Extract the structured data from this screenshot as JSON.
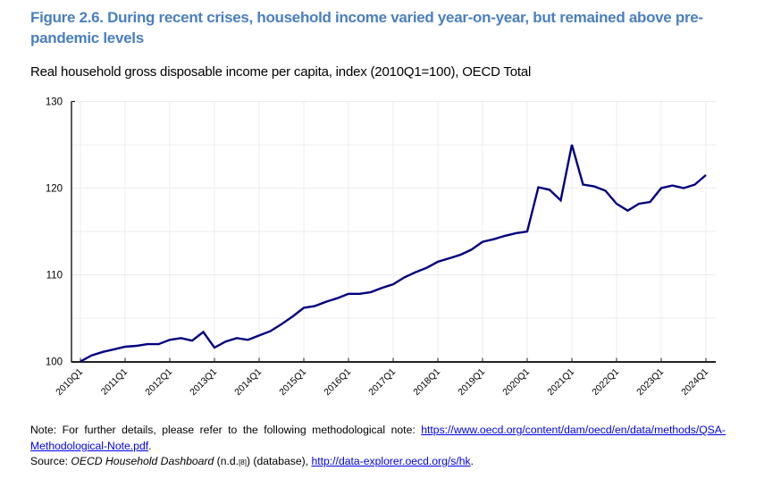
{
  "figure": {
    "title": "Figure 2.6. During recent crises, household income varied year-on-year, but remained above pre-pandemic levels",
    "subtitle": "Real household gross disposable income per capita, index (2010Q1=100), OECD Total"
  },
  "notes": {
    "note_prefix": "Note: For further details, please refer to the following methodological note: ",
    "note_link": "https://www.oecd.org/content/dam/oecd/en/data/methods/QSA-Methodological-Note.pdf",
    "note_suffix": ".",
    "source_prefix": "Source: ",
    "source_title": "OECD Household Dashboard",
    "source_mid": " (n.d.",
    "source_ref": "[8]",
    "source_after_ref": ") (database), ",
    "source_link": "http://data-explorer.oecd.org/s/hk",
    "source_suffix": "."
  },
  "colors": {
    "title": "#4a7fc1",
    "line": "#000080",
    "grid": "#ececec",
    "axis": "#222222"
  },
  "chart_data": {
    "type": "line",
    "title": "Real household gross disposable income per capita, index (2010Q1=100), OECD Total",
    "xlabel": "",
    "ylabel": "",
    "ylim": [
      100,
      130
    ],
    "yticks": [
      100,
      110,
      120,
      130
    ],
    "grid": true,
    "legend": "none",
    "x_tick_labels": [
      "2010Q1",
      "2011Q1",
      "2012Q1",
      "2013Q1",
      "2014Q1",
      "2015Q1",
      "2016Q1",
      "2017Q1",
      "2018Q1",
      "2019Q1",
      "2020Q1",
      "2021Q1",
      "2022Q1",
      "2023Q1",
      "2024Q1"
    ],
    "x": [
      "2010Q1",
      "2010Q2",
      "2010Q3",
      "2010Q4",
      "2011Q1",
      "2011Q2",
      "2011Q3",
      "2011Q4",
      "2012Q1",
      "2012Q2",
      "2012Q3",
      "2012Q4",
      "2013Q1",
      "2013Q2",
      "2013Q3",
      "2013Q4",
      "2014Q1",
      "2014Q2",
      "2014Q3",
      "2014Q4",
      "2015Q1",
      "2015Q2",
      "2015Q3",
      "2015Q4",
      "2016Q1",
      "2016Q2",
      "2016Q3",
      "2016Q4",
      "2017Q1",
      "2017Q2",
      "2017Q3",
      "2017Q4",
      "2018Q1",
      "2018Q2",
      "2018Q3",
      "2018Q4",
      "2019Q1",
      "2019Q2",
      "2019Q3",
      "2019Q4",
      "2020Q1",
      "2020Q2",
      "2020Q3",
      "2020Q4",
      "2021Q1",
      "2021Q2",
      "2021Q3",
      "2021Q4",
      "2022Q1",
      "2022Q2",
      "2022Q3",
      "2022Q4",
      "2023Q1",
      "2023Q2",
      "2023Q3",
      "2023Q4",
      "2024Q1"
    ],
    "series": [
      {
        "name": "OECD Total",
        "values": [
          100.0,
          100.7,
          101.1,
          101.4,
          101.7,
          101.8,
          102.0,
          102.0,
          102.5,
          102.7,
          102.4,
          103.4,
          101.6,
          102.3,
          102.7,
          102.5,
          103.0,
          103.5,
          104.3,
          105.2,
          106.2,
          106.4,
          106.9,
          107.3,
          107.8,
          107.8,
          108.0,
          108.5,
          108.9,
          109.7,
          110.3,
          110.8,
          111.5,
          111.9,
          112.3,
          112.9,
          113.8,
          114.1,
          114.5,
          114.8,
          115.0,
          120.1,
          119.8,
          118.6,
          125.0,
          120.4,
          120.2,
          119.7,
          118.2,
          117.4,
          118.2,
          118.4,
          120.0,
          120.3,
          120.0,
          120.4,
          121.5
        ]
      }
    ]
  }
}
